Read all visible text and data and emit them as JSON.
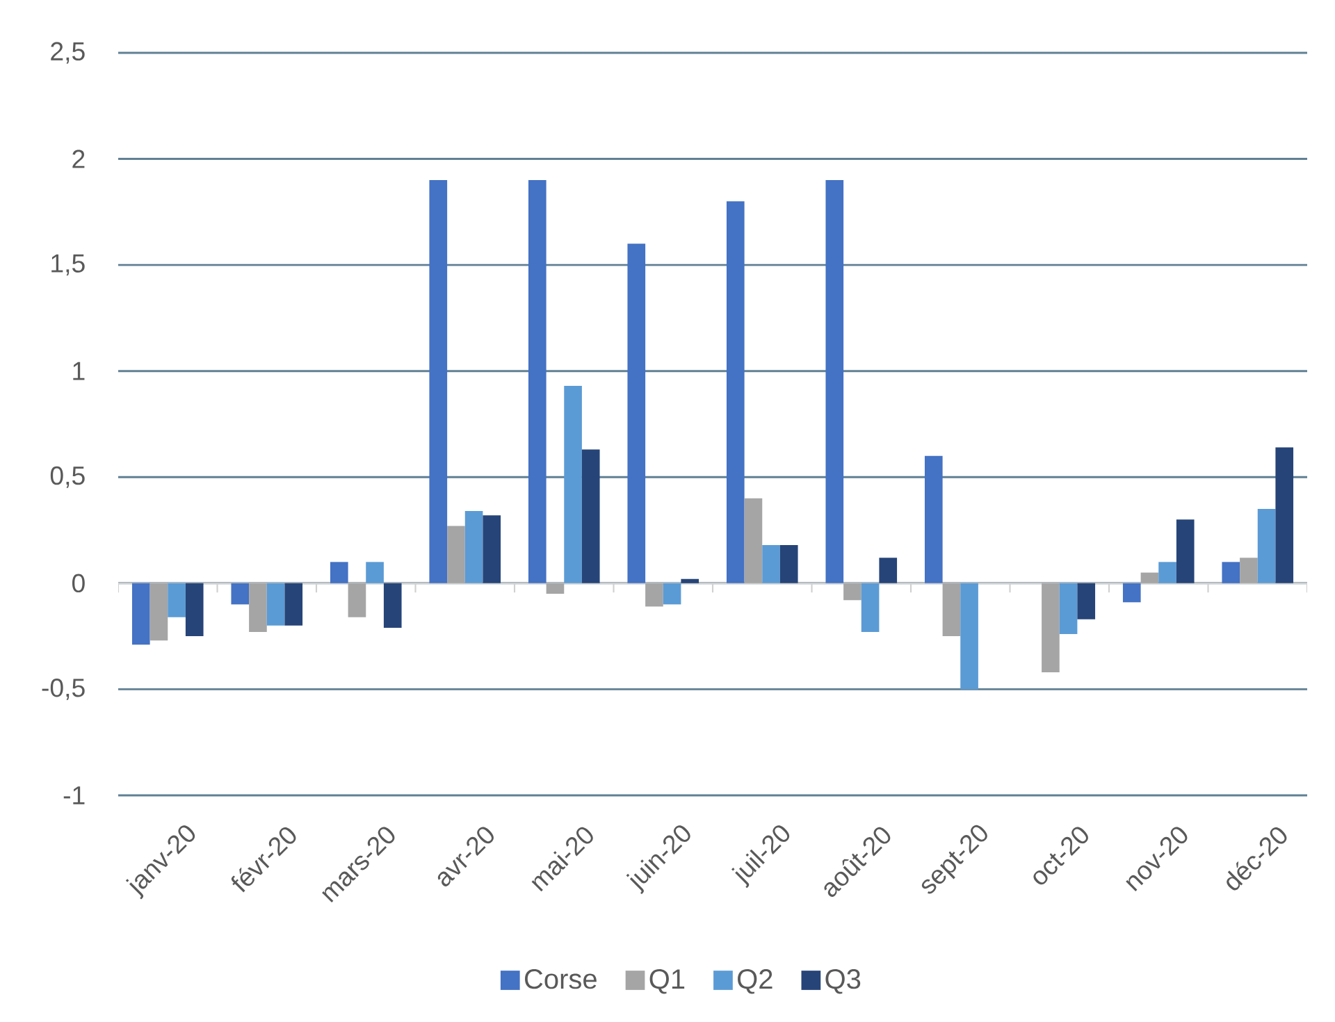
{
  "chart_data": {
    "type": "bar",
    "categories": [
      "janv-20",
      "févr-20",
      "mars-20",
      "avr-20",
      "mai-20",
      "juin-20",
      "juil-20",
      "août-20",
      "sept-20",
      "oct-20",
      "nov-20",
      "déc-20"
    ],
    "series": [
      {
        "name": "Corse",
        "color": "#4472c4",
        "values": [
          -0.29,
          -0.1,
          0.1,
          1.9,
          1.9,
          1.6,
          1.8,
          1.9,
          0.6,
          null,
          -0.09,
          0.1
        ]
      },
      {
        "name": "Q1",
        "color": "#a5a5a5",
        "values": [
          -0.27,
          -0.23,
          -0.16,
          0.27,
          -0.05,
          -0.11,
          0.4,
          -0.08,
          -0.25,
          -0.42,
          0.05,
          0.12
        ]
      },
      {
        "name": "Q2",
        "color": "#5b9bd5",
        "values": [
          -0.16,
          -0.2,
          0.1,
          0.34,
          0.93,
          -0.1,
          0.18,
          -0.23,
          -0.5,
          -0.24,
          0.1,
          0.35
        ]
      },
      {
        "name": "Q3",
        "color": "#264478",
        "values": [
          -0.25,
          -0.2,
          -0.21,
          0.32,
          0.63,
          0.02,
          0.18,
          0.12,
          null,
          -0.17,
          0.3,
          0.64
        ]
      }
    ],
    "ylim": [
      -1,
      2.5
    ],
    "yticks": [
      -1,
      {
        "value": -0.5,
        "label": "-0,5"
      },
      0,
      {
        "value": 0.5,
        "label": "0,5"
      },
      1,
      {
        "value": 1.5,
        "label": "1,5"
      },
      2,
      {
        "value": 2.5,
        "label": "2,5"
      }
    ],
    "grid": "y",
    "legend": "bottom"
  }
}
